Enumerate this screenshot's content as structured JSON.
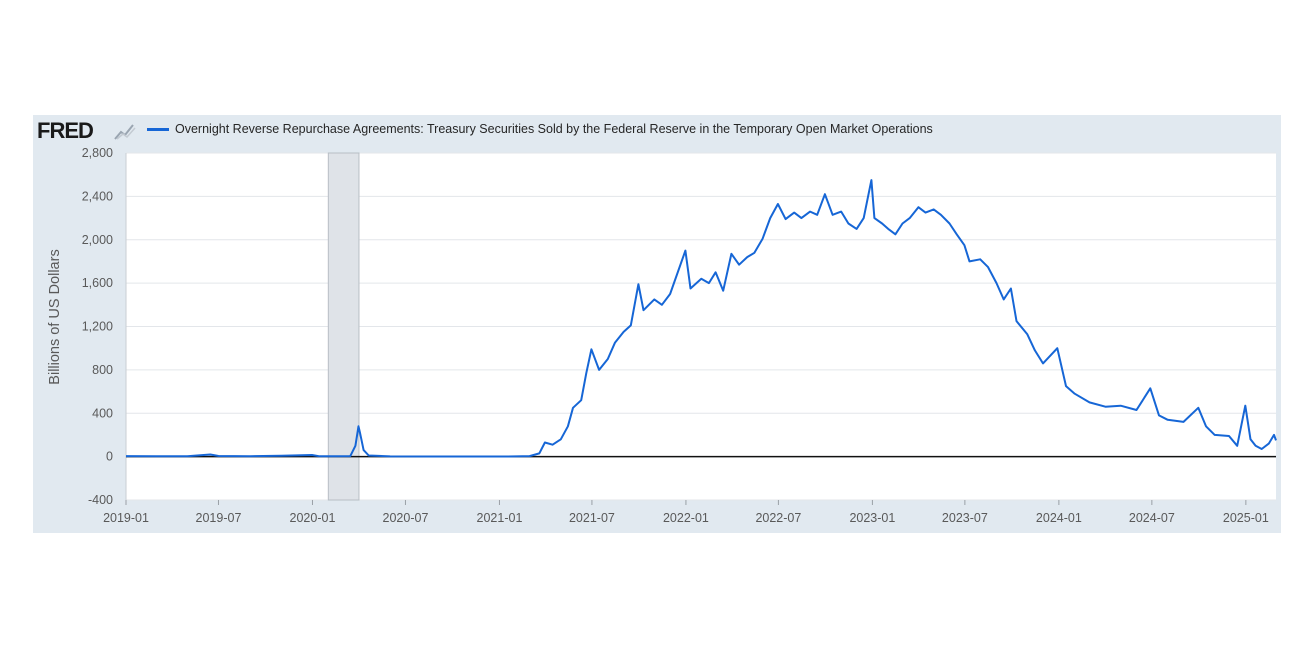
{
  "brand": {
    "name": "FRED"
  },
  "chart_data": {
    "type": "line",
    "title": "",
    "series": [
      {
        "name": "Overnight Reverse Repurchase Agreements: Treasury Securities Sold by the Federal Reserve in the Temporary Open Market Operations",
        "color": "#1666d6",
        "points": [
          [
            "2019-01-01",
            5
          ],
          [
            "2019-03-01",
            3
          ],
          [
            "2019-05-01",
            4
          ],
          [
            "2019-06-15",
            20
          ],
          [
            "2019-07-01",
            6
          ],
          [
            "2019-09-01",
            4
          ],
          [
            "2019-11-01",
            8
          ],
          [
            "2019-12-31",
            15
          ],
          [
            "2020-01-15",
            3
          ],
          [
            "2020-02-15",
            4
          ],
          [
            "2020-03-15",
            5
          ],
          [
            "2020-03-25",
            100
          ],
          [
            "2020-03-31",
            280
          ],
          [
            "2020-04-03",
            220
          ],
          [
            "2020-04-10",
            60
          ],
          [
            "2020-04-20",
            10
          ],
          [
            "2020-06-01",
            2
          ],
          [
            "2020-09-01",
            1
          ],
          [
            "2020-12-01",
            1
          ],
          [
            "2021-01-15",
            1
          ],
          [
            "2021-03-01",
            5
          ],
          [
            "2021-03-20",
            30
          ],
          [
            "2021-03-31",
            130
          ],
          [
            "2021-04-15",
            110
          ],
          [
            "2021-05-01",
            160
          ],
          [
            "2021-05-15",
            280
          ],
          [
            "2021-05-25",
            450
          ],
          [
            "2021-06-10",
            520
          ],
          [
            "2021-06-20",
            770
          ],
          [
            "2021-06-30",
            990
          ],
          [
            "2021-07-15",
            800
          ],
          [
            "2021-08-01",
            900
          ],
          [
            "2021-08-15",
            1050
          ],
          [
            "2021-09-01",
            1150
          ],
          [
            "2021-09-15",
            1210
          ],
          [
            "2021-09-30",
            1590
          ],
          [
            "2021-10-10",
            1350
          ],
          [
            "2021-10-31",
            1450
          ],
          [
            "2021-11-15",
            1400
          ],
          [
            "2021-12-01",
            1500
          ],
          [
            "2021-12-31",
            1900
          ],
          [
            "2022-01-10",
            1550
          ],
          [
            "2022-01-31",
            1640
          ],
          [
            "2022-02-15",
            1600
          ],
          [
            "2022-02-28",
            1700
          ],
          [
            "2022-03-15",
            1530
          ],
          [
            "2022-03-31",
            1870
          ],
          [
            "2022-04-15",
            1770
          ],
          [
            "2022-05-01",
            1840
          ],
          [
            "2022-05-15",
            1880
          ],
          [
            "2022-05-31",
            2010
          ],
          [
            "2022-06-15",
            2200
          ],
          [
            "2022-06-30",
            2330
          ],
          [
            "2022-07-15",
            2190
          ],
          [
            "2022-08-01",
            2250
          ],
          [
            "2022-08-15",
            2200
          ],
          [
            "2022-09-01",
            2260
          ],
          [
            "2022-09-15",
            2230
          ],
          [
            "2022-09-30",
            2420
          ],
          [
            "2022-10-15",
            2230
          ],
          [
            "2022-11-01",
            2260
          ],
          [
            "2022-11-15",
            2150
          ],
          [
            "2022-12-01",
            2100
          ],
          [
            "2022-12-15",
            2200
          ],
          [
            "2022-12-30",
            2550
          ],
          [
            "2023-01-05",
            2200
          ],
          [
            "2023-01-20",
            2150
          ],
          [
            "2023-02-01",
            2100
          ],
          [
            "2023-02-15",
            2050
          ],
          [
            "2023-03-01",
            2150
          ],
          [
            "2023-03-15",
            2200
          ],
          [
            "2023-04-01",
            2300
          ],
          [
            "2023-04-15",
            2250
          ],
          [
            "2023-05-01",
            2280
          ],
          [
            "2023-05-15",
            2230
          ],
          [
            "2023-06-01",
            2150
          ],
          [
            "2023-06-15",
            2050
          ],
          [
            "2023-06-30",
            1950
          ],
          [
            "2023-07-10",
            1800
          ],
          [
            "2023-07-31",
            1820
          ],
          [
            "2023-08-15",
            1750
          ],
          [
            "2023-09-01",
            1600
          ],
          [
            "2023-09-15",
            1450
          ],
          [
            "2023-09-29",
            1550
          ],
          [
            "2023-10-10",
            1250
          ],
          [
            "2023-10-31",
            1130
          ],
          [
            "2023-11-15",
            980
          ],
          [
            "2023-12-01",
            860
          ],
          [
            "2023-12-29",
            1000
          ],
          [
            "2024-01-15",
            650
          ],
          [
            "2024-02-01",
            580
          ],
          [
            "2024-03-01",
            500
          ],
          [
            "2024-04-01",
            460
          ],
          [
            "2024-05-01",
            470
          ],
          [
            "2024-06-01",
            430
          ],
          [
            "2024-06-28",
            630
          ],
          [
            "2024-07-15",
            380
          ],
          [
            "2024-08-01",
            340
          ],
          [
            "2024-09-01",
            320
          ],
          [
            "2024-09-30",
            450
          ],
          [
            "2024-10-15",
            280
          ],
          [
            "2024-11-01",
            200
          ],
          [
            "2024-11-29",
            190
          ],
          [
            "2024-12-15",
            100
          ],
          [
            "2024-12-31",
            470
          ],
          [
            "2025-01-10",
            160
          ],
          [
            "2025-01-20",
            100
          ],
          [
            "2025-02-01",
            70
          ],
          [
            "2025-02-15",
            120
          ],
          [
            "2025-02-25",
            200
          ],
          [
            "2025-03-01",
            150
          ]
        ]
      }
    ],
    "x_ticks": [
      "2019-01",
      "2019-07",
      "2020-01",
      "2020-07",
      "2021-01",
      "2021-07",
      "2022-01",
      "2022-07",
      "2023-01",
      "2023-07",
      "2024-01",
      "2024-07",
      "2025-01"
    ],
    "y_ticks": [
      -400,
      0,
      400,
      800,
      1200,
      1600,
      2000,
      2400,
      2800
    ],
    "y_tick_labels": [
      "-400",
      "0",
      "400",
      "800",
      "1,200",
      "1,600",
      "2,000",
      "2,400",
      "2,800"
    ],
    "ylabel": "Billions of US Dollars",
    "xlabel": "",
    "xlim": [
      "2019-01-01",
      "2025-03-01"
    ],
    "ylim": [
      -400,
      2800
    ],
    "recession": {
      "start": "2020-02-01",
      "end": "2020-04-01",
      "color": "#dfe3e8"
    },
    "grid": true,
    "legend_position": "top"
  }
}
